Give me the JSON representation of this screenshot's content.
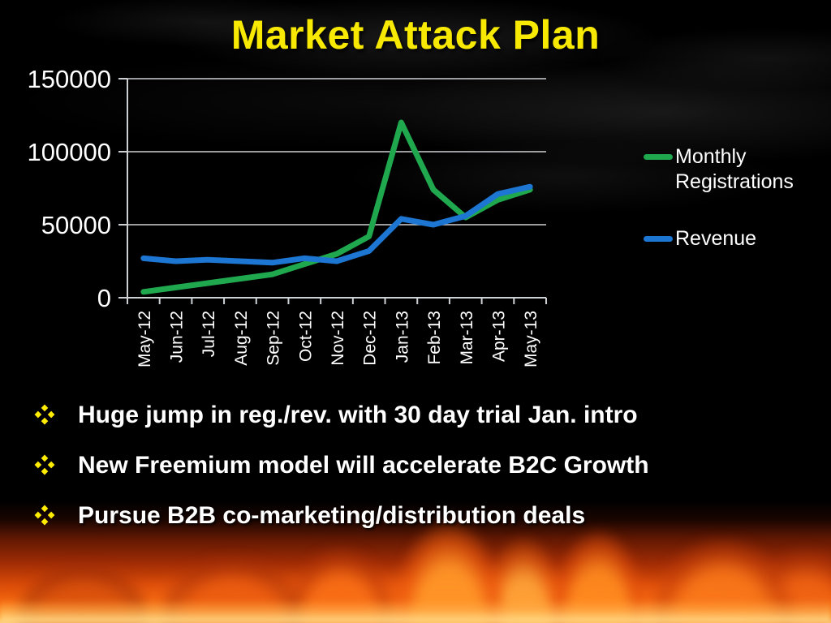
{
  "slide": {
    "title": "Market Attack Plan",
    "title_color": "#f8e903"
  },
  "chart_data": {
    "type": "line",
    "title": "",
    "xlabel": "",
    "ylabel": "",
    "categories": [
      "May-12",
      "Jun-12",
      "Jul-12",
      "Aug-12",
      "Sep-12",
      "Oct-12",
      "Nov-12",
      "Dec-12",
      "Jan-13",
      "Feb-13",
      "Mar-13",
      "Apr-13",
      "May-13"
    ],
    "series": [
      {
        "name": "Monthly Registrations",
        "color": "#1fa84d",
        "values": [
          4000,
          7000,
          10000,
          13000,
          16000,
          23000,
          30000,
          42000,
          120000,
          74000,
          55000,
          67000,
          74000
        ]
      },
      {
        "name": "Revenue",
        "color": "#1c76d2",
        "values": [
          27000,
          25000,
          26000,
          25000,
          24000,
          27000,
          25000,
          32000,
          54000,
          50000,
          56000,
          71000,
          76000
        ]
      }
    ],
    "ylim": [
      0,
      150000
    ],
    "yticks": [
      0,
      50000,
      100000,
      150000
    ],
    "grid": true,
    "legend_position": "right"
  },
  "bullets": {
    "marker": "four-diamond",
    "marker_color": "#ffec00",
    "items": [
      "Huge jump in reg./rev. with 30 day trial Jan. intro",
      "New Freemium model will accelerate B2C Growth",
      "Pursue B2B co-marketing/distribution deals"
    ]
  }
}
